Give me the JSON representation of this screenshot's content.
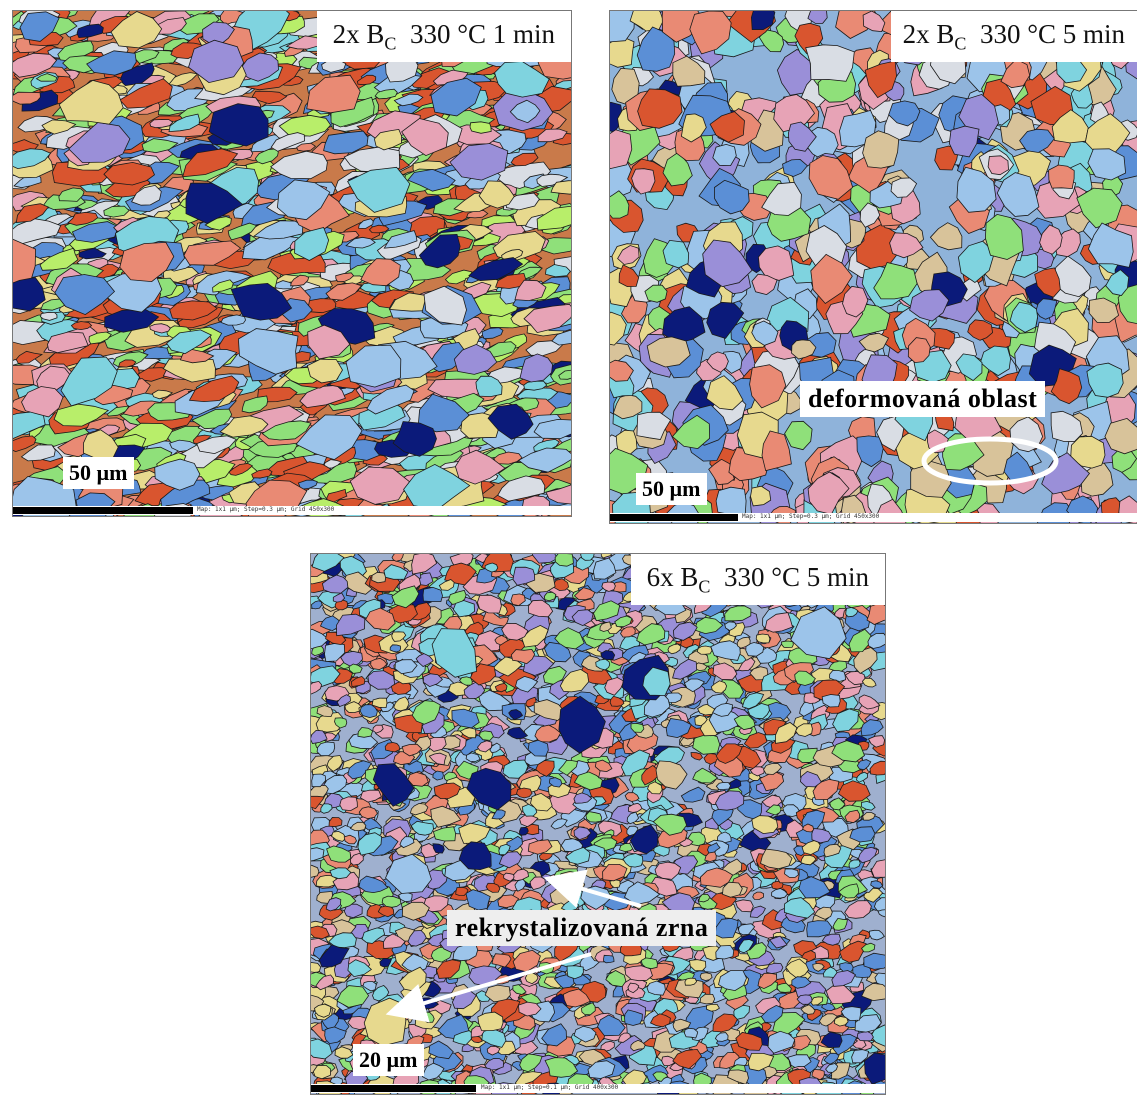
{
  "panels": {
    "p1": {
      "label_prefix": "2x B",
      "label_sub": "C",
      "label_suffix": "330 °C   1 min",
      "scale": "50 µm",
      "scale_text": "Map: 1x1 µm; Step=0.3 µm; Grid 450x300"
    },
    "p2": {
      "label_prefix": "2x B",
      "label_sub": "C",
      "label_suffix": "330 °C  5 min",
      "scale": "50 µm",
      "scale_text": "Map: 1x1 µm; Step=0.3 µm; Grid 450x300",
      "annotation": "deformovaná oblast"
    },
    "p3": {
      "label_prefix": "6x B",
      "label_sub": "C",
      "label_suffix": "330 °C  5  min",
      "scale": "20 µm",
      "scale_text": "Map: 1x1 µm; Step=0.1 µm; Grid 400x300",
      "annotation": "rekrystalizovaná zrna"
    }
  },
  "palette": {
    "blue": "#5b8fd6",
    "light_blue": "#9cc4ea",
    "cyan": "#7fd3df",
    "green": "#8fe07a",
    "lime": "#b8ee6a",
    "salmon": "#e98a74",
    "red": "#d9552f",
    "pink": "#e7a3b6",
    "purple": "#9a8fd8",
    "yellow": "#e7d98e",
    "tan": "#d8c39a",
    "navy": "#0b1a7a",
    "grey": "#d9dde4",
    "boundary": "#1a1a1a"
  }
}
